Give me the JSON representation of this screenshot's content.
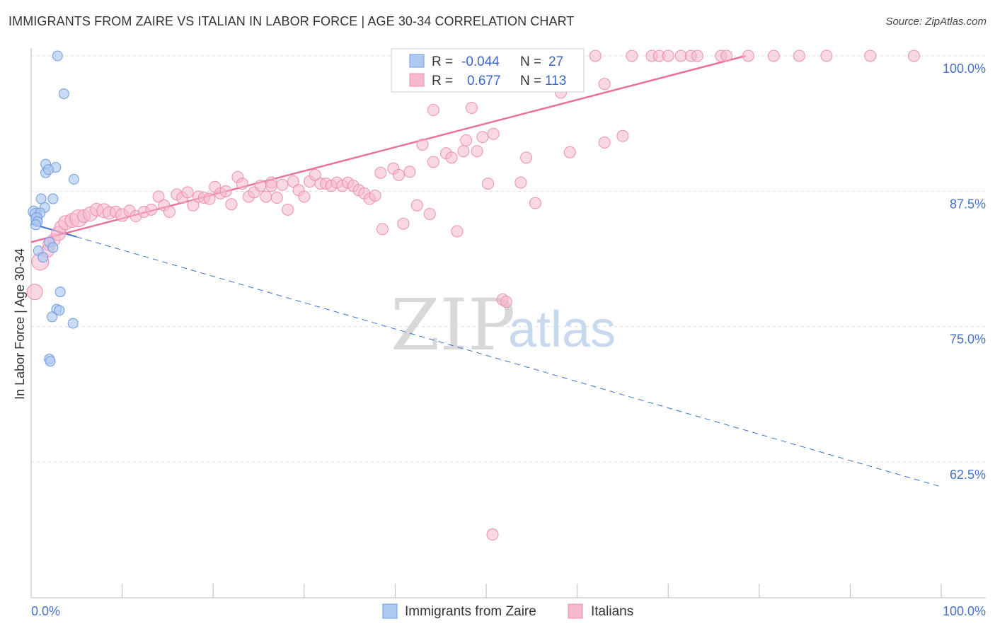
{
  "title": "IMMIGRANTS FROM ZAIRE VS ITALIAN IN LABOR FORCE | AGE 30-34 CORRELATION CHART",
  "source": "Source: ZipAtlas.com",
  "watermark": {
    "zip": "ZIP",
    "atlas": "atlas"
  },
  "colors": {
    "series1_fill": "#aec8f0",
    "series1_stroke": "#6f9be0",
    "series1_line": "#3a6fcf",
    "series2_fill": "#f5b8cc",
    "series2_stroke": "#ec8fad",
    "series2_line": "#e8709a",
    "grid": "#dddddd",
    "axis": "#bbbbbb",
    "tick_text": "#4472c4"
  },
  "legend_box": {
    "rows": [
      {
        "r_label": "R =",
        "r_value": "-0.044",
        "n_label": "N =",
        "n_value": "27"
      },
      {
        "r_label": "R =",
        "r_value": "0.677",
        "n_label": "N =",
        "n_value": "113"
      }
    ]
  },
  "bottom_legend": [
    "Immigrants from Zaire",
    "Italians"
  ],
  "chart_data": {
    "type": "scatter",
    "title": "IMMIGRANTS FROM ZAIRE VS ITALIAN IN LABOR FORCE | AGE 30-34 CORRELATION CHART",
    "xlabel": "",
    "ylabel": "In Labor Force | Age 30-34",
    "xlim": [
      0,
      100
    ],
    "ylim": [
      50,
      101.5
    ],
    "x_tick_labels": [
      "0.0%",
      "100.0%"
    ],
    "y_ticks": [
      62.5,
      75.0,
      87.5,
      100.0
    ],
    "y_tick_labels": [
      "62.5%",
      "75.0%",
      "87.5%",
      "100.0%"
    ],
    "grid": true,
    "series": [
      {
        "name": "Immigrants from Zaire",
        "r": -0.044,
        "n": 27,
        "trend": {
          "x": [
            0,
            100
          ],
          "y": [
            84.5,
            60.2
          ],
          "solid_until_x": 5
        },
        "points": [
          [
            2.9,
            100.0,
            7
          ],
          [
            3.6,
            96.5,
            7
          ],
          [
            1.6,
            90.0,
            7
          ],
          [
            2.7,
            89.7,
            7
          ],
          [
            1.6,
            89.2,
            7
          ],
          [
            1.9,
            89.5,
            7
          ],
          [
            4.7,
            88.6,
            7
          ],
          [
            1.1,
            86.8,
            7
          ],
          [
            2.4,
            86.8,
            7
          ],
          [
            1.5,
            86.0,
            7
          ],
          [
            0.3,
            85.6,
            8
          ],
          [
            0.5,
            85.4,
            8
          ],
          [
            1.0,
            85.5,
            7
          ],
          [
            0.6,
            85.0,
            8
          ],
          [
            0.7,
            84.7,
            7
          ],
          [
            0.5,
            84.4,
            7
          ],
          [
            2.0,
            82.8,
            7
          ],
          [
            2.4,
            82.3,
            7
          ],
          [
            0.8,
            82.0,
            7
          ],
          [
            1.3,
            81.4,
            7
          ],
          [
            3.2,
            78.2,
            7
          ],
          [
            2.8,
            76.6,
            7
          ],
          [
            3.1,
            76.5,
            7
          ],
          [
            2.3,
            75.9,
            7
          ],
          [
            4.6,
            75.3,
            7
          ],
          [
            2.0,
            72.0,
            7
          ],
          [
            2.1,
            71.8,
            7
          ]
        ]
      },
      {
        "name": "Italians",
        "r": 0.677,
        "n": 113,
        "trend": {
          "x": [
            0,
            78.5
          ],
          "y": [
            82.8,
            100.0
          ]
        },
        "points": [
          [
            0.4,
            78.2,
            11
          ],
          [
            1.0,
            81.0,
            12
          ],
          [
            1.8,
            82.0,
            9
          ],
          [
            2.0,
            82.6,
            9
          ],
          [
            2.5,
            83.0,
            9
          ],
          [
            3.0,
            83.6,
            10
          ],
          [
            3.3,
            84.2,
            9
          ],
          [
            3.8,
            84.6,
            10
          ],
          [
            4.5,
            84.8,
            10
          ],
          [
            5.2,
            85.0,
            12
          ],
          [
            5.8,
            85.2,
            9
          ],
          [
            6.5,
            85.4,
            10
          ],
          [
            7.2,
            85.8,
            9
          ],
          [
            8.0,
            85.7,
            10
          ],
          [
            8.6,
            85.5,
            9
          ],
          [
            9.3,
            85.6,
            8
          ],
          [
            10.0,
            85.3,
            9
          ],
          [
            10.8,
            85.7,
            8
          ],
          [
            11.5,
            85.2,
            8
          ],
          [
            12.4,
            85.6,
            8
          ],
          [
            13.2,
            85.8,
            8
          ],
          [
            14.0,
            87.0,
            8
          ],
          [
            14.6,
            86.2,
            8
          ],
          [
            15.2,
            85.6,
            8
          ],
          [
            16.0,
            87.2,
            8
          ],
          [
            16.6,
            86.9,
            8
          ],
          [
            17.2,
            87.4,
            8
          ],
          [
            17.8,
            86.2,
            8
          ],
          [
            18.4,
            87.0,
            8
          ],
          [
            19.0,
            86.9,
            8
          ],
          [
            19.6,
            86.8,
            8
          ],
          [
            20.2,
            87.9,
            8
          ],
          [
            20.8,
            87.3,
            8
          ],
          [
            21.4,
            87.5,
            8
          ],
          [
            22.0,
            86.3,
            8
          ],
          [
            22.7,
            88.8,
            8
          ],
          [
            23.2,
            88.2,
            8
          ],
          [
            23.9,
            87.0,
            8
          ],
          [
            24.5,
            87.4,
            8
          ],
          [
            25.2,
            88.0,
            8
          ],
          [
            25.8,
            87.0,
            8
          ],
          [
            26.4,
            88.3,
            8
          ],
          [
            27.0,
            86.9,
            8
          ],
          [
            27.6,
            88.1,
            8
          ],
          [
            28.2,
            85.8,
            8
          ],
          [
            28.8,
            88.4,
            8
          ],
          [
            29.4,
            87.6,
            8
          ],
          [
            30.0,
            87.0,
            8
          ],
          [
            30.6,
            88.4,
            8
          ],
          [
            31.2,
            89.0,
            8
          ],
          [
            31.8,
            88.2,
            8
          ],
          [
            32.4,
            88.2,
            8
          ],
          [
            33.0,
            88.0,
            8
          ],
          [
            33.6,
            88.3,
            8
          ],
          [
            34.2,
            88.0,
            8
          ],
          [
            34.8,
            88.3,
            8
          ],
          [
            35.4,
            88.0,
            8
          ],
          [
            36.0,
            87.6,
            8
          ],
          [
            36.6,
            87.3,
            8
          ],
          [
            37.2,
            86.8,
            8
          ],
          [
            37.8,
            87.1,
            8
          ],
          [
            38.4,
            89.2,
            8
          ],
          [
            38.6,
            84.0,
            8
          ],
          [
            39.8,
            89.6,
            8
          ],
          [
            40.4,
            89.0,
            8
          ],
          [
            40.9,
            84.5,
            8
          ],
          [
            41.6,
            89.3,
            8
          ],
          [
            42.4,
            86.2,
            8
          ],
          [
            43.0,
            91.8,
            8
          ],
          [
            43.8,
            85.4,
            8
          ],
          [
            44.2,
            90.2,
            8
          ],
          [
            44.2,
            95.0,
            8
          ],
          [
            45.6,
            91.0,
            8
          ],
          [
            46.2,
            90.6,
            8
          ],
          [
            46.8,
            83.8,
            8
          ],
          [
            47.5,
            91.2,
            8
          ],
          [
            47.8,
            92.2,
            8
          ],
          [
            48.4,
            95.2,
            8
          ],
          [
            49.0,
            91.2,
            8
          ],
          [
            49.6,
            92.5,
            8
          ],
          [
            50.2,
            88.2,
            8
          ],
          [
            50.8,
            92.8,
            8
          ],
          [
            51.8,
            77.5,
            8
          ],
          [
            52.2,
            77.3,
            8
          ],
          [
            53.8,
            88.3,
            8
          ],
          [
            54.4,
            90.6,
            8
          ],
          [
            55.4,
            86.4,
            8
          ],
          [
            58.2,
            96.6,
            8
          ],
          [
            59.2,
            91.1,
            8
          ],
          [
            63.0,
            92.0,
            8
          ],
          [
            65.0,
            92.6,
            8
          ],
          [
            63.0,
            97.4,
            8
          ],
          [
            59.3,
            98.2,
            8
          ],
          [
            58.0,
            100.0,
            8
          ],
          [
            62.0,
            100.0,
            8
          ],
          [
            66.0,
            100.0,
            8
          ],
          [
            68.2,
            100.0,
            8
          ],
          [
            69.0,
            100.0,
            8
          ],
          [
            70.0,
            100.0,
            8
          ],
          [
            71.4,
            100.0,
            8
          ],
          [
            72.5,
            100.0,
            8
          ],
          [
            73.2,
            100.0,
            8
          ],
          [
            75.8,
            100.0,
            8
          ],
          [
            76.4,
            100.0,
            8
          ],
          [
            78.8,
            100.0,
            8
          ],
          [
            81.6,
            100.0,
            8
          ],
          [
            84.4,
            100.0,
            8
          ],
          [
            87.4,
            100.0,
            8
          ],
          [
            92.2,
            100.0,
            8
          ],
          [
            97.0,
            100.0,
            8
          ],
          [
            43.2,
            100.0,
            8
          ],
          [
            50.7,
            55.8,
            8
          ],
          [
            26.4,
            88.0,
            8
          ]
        ]
      }
    ]
  }
}
